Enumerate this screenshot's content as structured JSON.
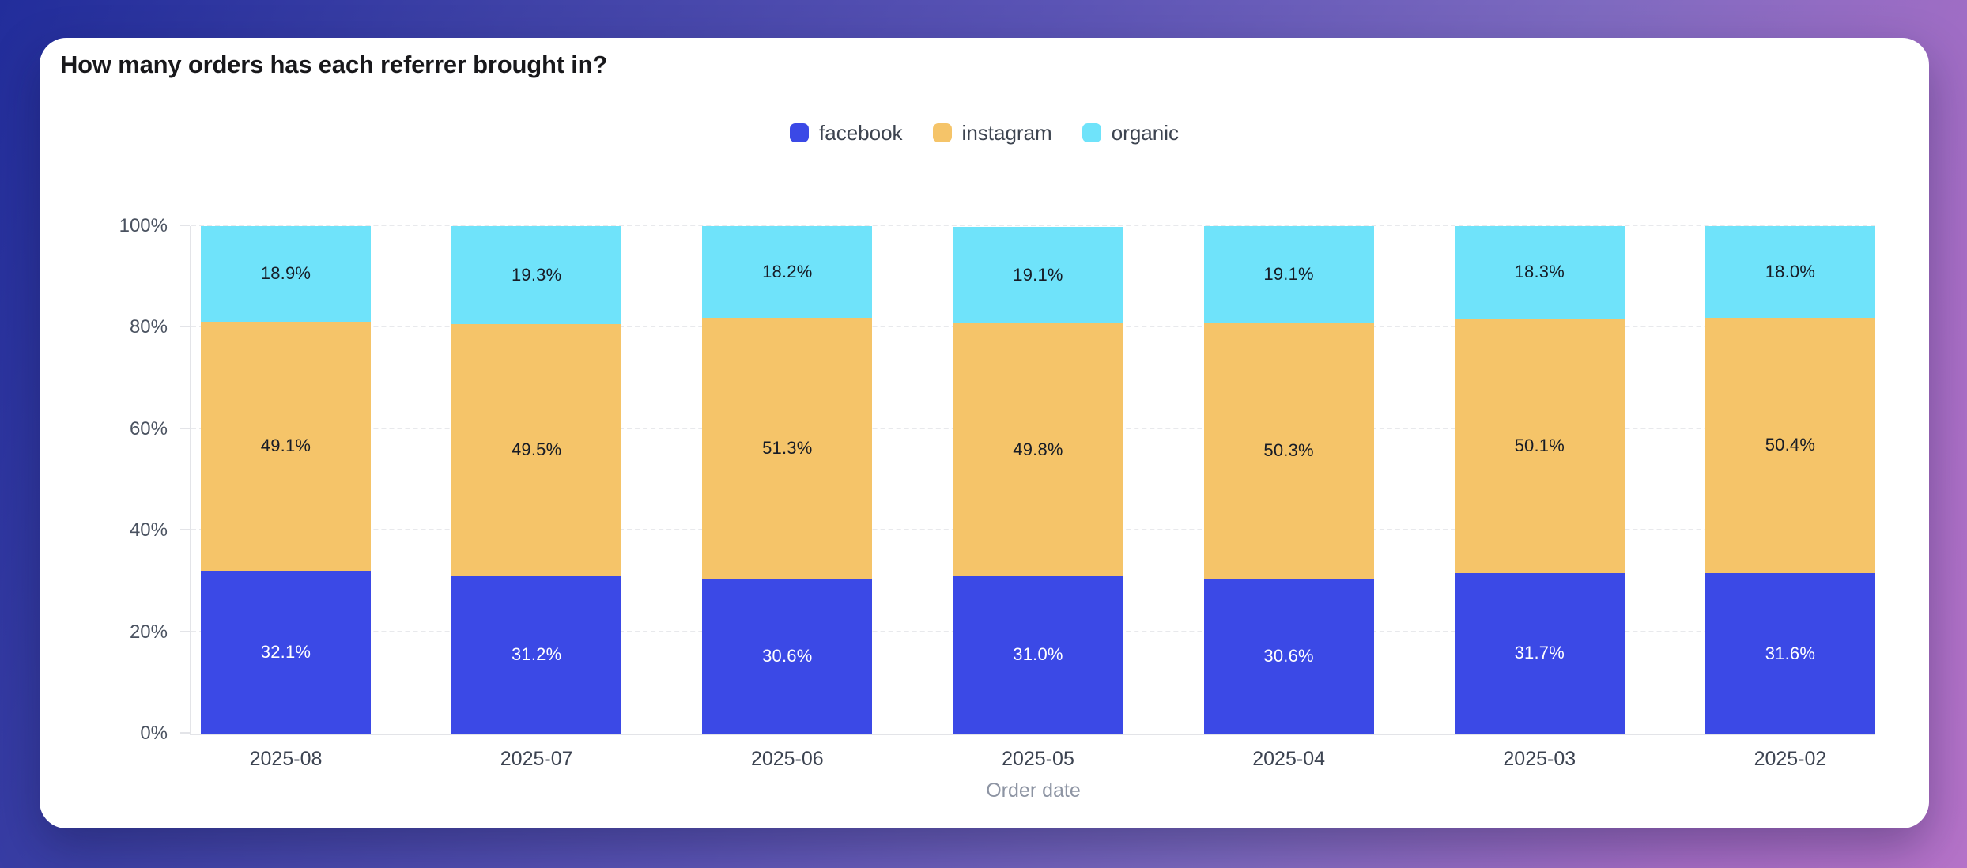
{
  "card": {
    "title": "How many orders has each referrer brought in?"
  },
  "chart_data": {
    "type": "bar",
    "stacked": true,
    "title": "How many orders has each referrer brought in?",
    "categories": [
      "2025-08",
      "2025-07",
      "2025-06",
      "2025-05",
      "2025-04",
      "2025-03",
      "2025-02"
    ],
    "series": [
      {
        "name": "facebook",
        "color": "#3b49e6",
        "label_color": "#ffffff",
        "values": [
          32.1,
          31.2,
          30.6,
          31.0,
          30.6,
          31.7,
          31.6
        ]
      },
      {
        "name": "instagram",
        "color": "#f5c469",
        "label_color": "#171c26",
        "values": [
          49.1,
          49.5,
          51.3,
          49.8,
          50.3,
          50.1,
          50.4
        ]
      },
      {
        "name": "organic",
        "color": "#6fe3fa",
        "label_color": "#171c26",
        "values": [
          18.9,
          19.3,
          18.2,
          19.1,
          19.1,
          18.3,
          18.0
        ]
      }
    ],
    "xlabel": "Order date",
    "ylabel": "",
    "y_ticks": [
      "0%",
      "20%",
      "40%",
      "60%",
      "80%",
      "100%"
    ],
    "ylim": [
      0,
      100
    ],
    "value_suffix": "%",
    "value_decimals": 1,
    "legend_position": "top",
    "grid": "horizontal-dashed"
  },
  "colors": {
    "card_background": "#ffffff",
    "background_gradient_start": "#222d9b",
    "background_gradient_mid": "#7e6ac0",
    "background_gradient_end": "#b673c9",
    "axis_line": "#e3e4e8",
    "gridline": "#e8e9ec",
    "y_label_text": "#4a5260",
    "x_label_text": "#3c4351",
    "legend_text": "#3d4450",
    "axis_title_text": "#8d94a3",
    "title_text": "#18181b"
  }
}
